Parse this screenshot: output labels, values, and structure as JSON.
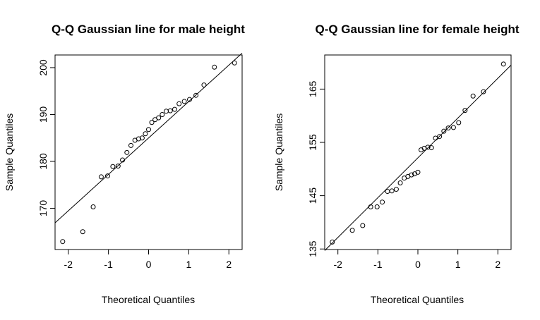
{
  "chart_data": [
    {
      "type": "scatter",
      "title": "Q-Q Gaussian line for male height",
      "xlabel": "Theoretical Quantiles",
      "ylabel": "Sample Quantiles",
      "xlim": [
        -2.33,
        2.33
      ],
      "ylim": [
        161.2,
        202.7
      ],
      "x_ticks": [
        -2,
        -1,
        0,
        1,
        2
      ],
      "y_ticks": [
        170,
        180,
        190,
        200
      ],
      "grid": false,
      "reference_line": {
        "x1": -2.33,
        "y1": 166.9,
        "x2": 2.33,
        "y2": 203.1
      },
      "series": [
        {
          "x": [
            -2.14,
            -1.64,
            -1.38,
            -1.18,
            -1.02,
            -0.89,
            -0.76,
            -0.65,
            -0.54,
            -0.44,
            -0.34,
            -0.25,
            -0.16,
            -0.08,
            0.0,
            0.08,
            0.16,
            0.25,
            0.34,
            0.44,
            0.54,
            0.65,
            0.76,
            0.89,
            1.02,
            1.18,
            1.38,
            1.64,
            2.14
          ],
          "y": [
            162.9,
            165.0,
            170.3,
            176.7,
            176.9,
            178.9,
            179.0,
            180.3,
            181.9,
            183.4,
            184.5,
            184.8,
            185.0,
            185.9,
            186.8,
            188.3,
            188.9,
            189.3,
            190.0,
            190.7,
            190.8,
            191.1,
            192.3,
            192.8,
            193.2,
            194.1,
            196.3,
            200.1,
            201.0
          ]
        }
      ]
    },
    {
      "type": "scatter",
      "title": "Q-Q Gaussian line for female height",
      "xlabel": "Theoretical Quantiles",
      "ylabel": "Sample Quantiles",
      "xlim": [
        -2.33,
        2.33
      ],
      "ylim": [
        134.9,
        171.4
      ],
      "x_ticks": [
        -2,
        -1,
        0,
        1,
        2
      ],
      "y_ticks": [
        135,
        145,
        155,
        165
      ],
      "grid": false,
      "reference_line": {
        "x1": -2.33,
        "y1": 134.7,
        "x2": 2.33,
        "y2": 169.5
      },
      "series": [
        {
          "x": [
            -2.14,
            -1.64,
            -1.38,
            -1.18,
            -1.02,
            -0.89,
            -0.76,
            -0.65,
            -0.54,
            -0.44,
            -0.34,
            -0.25,
            -0.16,
            -0.08,
            0.0,
            0.08,
            0.16,
            0.25,
            0.34,
            0.44,
            0.54,
            0.65,
            0.76,
            0.89,
            1.02,
            1.18,
            1.38,
            1.64,
            2.14
          ],
          "y": [
            136.3,
            138.5,
            139.4,
            142.9,
            142.9,
            143.8,
            145.8,
            145.9,
            146.2,
            147.4,
            148.3,
            148.6,
            148.9,
            149.1,
            149.4,
            153.6,
            153.9,
            154.1,
            154.0,
            155.8,
            156.1,
            157.1,
            157.7,
            157.8,
            158.7,
            161.0,
            163.7,
            164.5,
            169.7
          ]
        }
      ]
    }
  ]
}
